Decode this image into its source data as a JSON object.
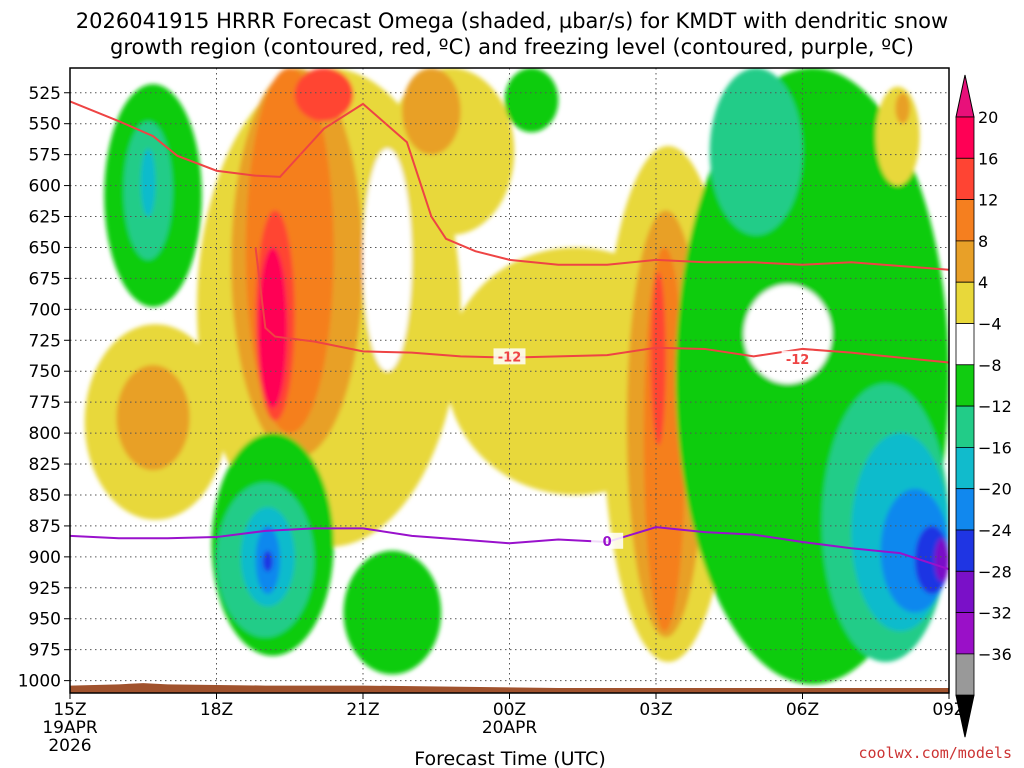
{
  "chart_data": {
    "type": "heatmap",
    "title_line1": "2026041915 HRRR Forecast Omega (shaded, µbar/s) for KMDT with dendritic snow",
    "title_line2": "growth region (contoured, red, ºC) and freezing level (contoured, purple, ºC)",
    "xlabel": "Forecast Time (UTC)",
    "credit": "coolwx.com/models",
    "x_range_hours": [
      0,
      18
    ],
    "x_ticks": [
      {
        "h": 0,
        "label": "15Z",
        "sub1": "19APR",
        "sub2": "2026"
      },
      {
        "h": 3,
        "label": "18Z",
        "sub1": "",
        "sub2": ""
      },
      {
        "h": 6,
        "label": "21Z",
        "sub1": "",
        "sub2": ""
      },
      {
        "h": 9,
        "label": "00Z",
        "sub1": "20APR",
        "sub2": ""
      },
      {
        "h": 12,
        "label": "03Z",
        "sub1": "",
        "sub2": ""
      },
      {
        "h": 15,
        "label": "06Z",
        "sub1": "",
        "sub2": ""
      },
      {
        "h": 18,
        "label": "09Z",
        "sub1": "",
        "sub2": ""
      }
    ],
    "y_range_hPa": [
      505,
      1010
    ],
    "y_ticks": [
      525,
      550,
      575,
      600,
      625,
      650,
      675,
      700,
      725,
      750,
      775,
      800,
      825,
      850,
      875,
      900,
      925,
      950,
      975,
      1000
    ],
    "colorbar": {
      "labels": [
        "20",
        "16",
        "12",
        "8",
        "4",
        "−4",
        "−8",
        "−12",
        "−16",
        "−20",
        "−24",
        "−28",
        "−32",
        "−36"
      ],
      "colors": [
        "#ff0055",
        "#ff4433",
        "#f57f1f",
        "#e8a028",
        "#e8d83a",
        "#ffffff",
        "#11cc11",
        "#22cc88",
        "#11bbcc",
        "#1188ee",
        "#1f35e3",
        "#7a10c8",
        "#9a10c8",
        "#999999"
      ],
      "top_color": "#e8107a",
      "bottom_color": "#000000"
    },
    "omega_cells": [
      {
        "name": "green-cell-upper-left",
        "color": "#11cc11",
        "h0": 0.7,
        "h1": 2.7,
        "p0": 518,
        "p1": 698
      },
      {
        "name": "teal-cell-upper-left",
        "color": "#22cc88",
        "h0": 1.1,
        "h1": 2.1,
        "p0": 548,
        "p1": 660
      },
      {
        "name": "cyan-cell-upper-left",
        "color": "#11bbcc",
        "h0": 1.45,
        "h1": 1.75,
        "p0": 570,
        "p1": 625
      },
      {
        "name": "yellow-lobe-lower-left",
        "color": "#e8d83a",
        "h0": 0.3,
        "h1": 3.2,
        "p0": 712,
        "p1": 870
      },
      {
        "name": "gold-lobe-lower-left",
        "color": "#e8a028",
        "h0": 0.95,
        "h1": 2.45,
        "p0": 745,
        "p1": 830
      },
      {
        "name": "yellow-main-ascent",
        "color": "#e8d83a",
        "h0": 2.6,
        "h1": 8.0,
        "p0": 505,
        "p1": 892
      },
      {
        "name": "gold-main-ascent",
        "color": "#e8a028",
        "h0": 3.3,
        "h1": 6.0,
        "p0": 505,
        "p1": 820
      },
      {
        "name": "orange-main-ascent",
        "color": "#f57f1f",
        "h0": 3.6,
        "h1": 5.4,
        "p0": 505,
        "p1": 800
      },
      {
        "name": "red-main-ascent",
        "color": "#ff4433",
        "h0": 3.8,
        "h1": 4.6,
        "p0": 620,
        "p1": 790
      },
      {
        "name": "magenta-core-lower",
        "color": "#ff0055",
        "h0": 3.85,
        "h1": 4.45,
        "p0": 650,
        "p1": 780
      },
      {
        "name": "red-core-upper",
        "color": "#ff4433",
        "h0": 4.6,
        "h1": 5.8,
        "p0": 505,
        "p1": 548
      },
      {
        "name": "yellow-upper-mid",
        "color": "#e8d83a",
        "h0": 6.5,
        "h1": 9.1,
        "p0": 505,
        "p1": 640
      },
      {
        "name": "gold-upper-mid",
        "color": "#e8a028",
        "h0": 6.8,
        "h1": 8.0,
        "p0": 505,
        "p1": 575
      },
      {
        "name": "green-upper-mid",
        "color": "#11cc11",
        "h0": 8.9,
        "h1": 10.0,
        "p0": 505,
        "p1": 557
      },
      {
        "name": "yellow-central-ridge",
        "color": "#e8d83a",
        "h0": 7.7,
        "h1": 13.0,
        "p0": 650,
        "p1": 850
      },
      {
        "name": "yellow-03z-column",
        "color": "#e8d83a",
        "h0": 10.9,
        "h1": 13.6,
        "p0": 568,
        "p1": 985
      },
      {
        "name": "gold-03z-column",
        "color": "#e8a028",
        "h0": 11.4,
        "h1": 13.0,
        "p0": 620,
        "p1": 965
      },
      {
        "name": "orange-03z-column",
        "color": "#f57f1f",
        "h0": 11.75,
        "h1": 12.6,
        "p0": 650,
        "p1": 960
      },
      {
        "name": "red-03z-core",
        "color": "#ff4433",
        "h0": 11.9,
        "h1": 12.2,
        "p0": 670,
        "p1": 810
      },
      {
        "name": "green-west-lower",
        "color": "#11cc11",
        "h0": 2.9,
        "h1": 5.4,
        "p0": 800,
        "p1": 980
      },
      {
        "name": "teal-west-lower",
        "color": "#22cc88",
        "h0": 3.0,
        "h1": 5.0,
        "p0": 840,
        "p1": 965
      },
      {
        "name": "cyan-west-lower",
        "color": "#11bbcc",
        "h0": 3.5,
        "h1": 4.6,
        "p0": 860,
        "p1": 940
      },
      {
        "name": "blue-west-lower",
        "color": "#1188ee",
        "h0": 3.8,
        "h1": 4.3,
        "p0": 875,
        "p1": 930
      },
      {
        "name": "purple-west-dot",
        "color": "#1f35e3",
        "h0": 3.95,
        "h1": 4.15,
        "p0": 895,
        "p1": 912
      },
      {
        "name": "green-center-lower",
        "color": "#11cc11",
        "h0": 5.6,
        "h1": 7.6,
        "p0": 895,
        "p1": 995
      },
      {
        "name": "green-east-main",
        "color": "#11cc11",
        "h0": 12.4,
        "h1": 18.0,
        "p0": 505,
        "p1": 1003
      },
      {
        "name": "teal-east-upper",
        "color": "#22cc88",
        "h0": 13.1,
        "h1": 15.0,
        "p0": 505,
        "p1": 640
      },
      {
        "name": "yellow-east-upper",
        "color": "#e8d83a",
        "h0": 16.5,
        "h1": 17.4,
        "p0": 520,
        "p1": 600
      },
      {
        "name": "gold-east-upper",
        "color": "#e8a028",
        "h0": 16.9,
        "h1": 17.2,
        "p0": 525,
        "p1": 550
      },
      {
        "name": "teal-east-lower",
        "color": "#22cc88",
        "h0": 15.4,
        "h1": 18.0,
        "p0": 760,
        "p1": 985
      },
      {
        "name": "cyan-east-lower",
        "color": "#11bbcc",
        "h0": 16.0,
        "h1": 18.0,
        "p0": 800,
        "p1": 960
      },
      {
        "name": "blue-east-lower",
        "color": "#1188ee",
        "h0": 16.6,
        "h1": 18.0,
        "p0": 845,
        "p1": 945
      },
      {
        "name": "navy-east-lower",
        "color": "#1f35e3",
        "h0": 17.3,
        "h1": 18.0,
        "p0": 875,
        "p1": 930
      },
      {
        "name": "purple-east-lower",
        "color": "#7a10c8",
        "h0": 17.7,
        "h1": 18.0,
        "p0": 885,
        "p1": 920
      }
    ],
    "white_holes": [
      {
        "name": "white-hole-21z",
        "h0": 6.0,
        "h1": 7.0,
        "p0": 570,
        "p1": 750
      },
      {
        "name": "white-hole-05z",
        "h0": 13.8,
        "h1": 15.6,
        "p0": 680,
        "p1": 760
      }
    ],
    "dgz_isotherm_label": "-12",
    "dgz_upper": {
      "name": "dgz-upper-isotherm",
      "h": [
        0,
        1,
        1.7,
        2.2,
        3.0,
        3.8,
        4.3,
        5.2,
        6.0,
        6.9,
        7.4,
        7.7,
        8.3,
        9.0,
        10.0,
        11.0,
        12.0,
        13.0,
        14.0,
        15.0,
        16.0,
        17.0,
        18.0
      ],
      "p": [
        532,
        548,
        560,
        576,
        588,
        592,
        593,
        554,
        534,
        565,
        625,
        643,
        653,
        660,
        664,
        664,
        660,
        662,
        662,
        664,
        662,
        665,
        668
      ]
    },
    "dgz_lower": {
      "name": "dgz-lower-isotherm",
      "h": [
        3.8,
        4.0,
        4.2,
        5.0,
        6.0,
        7.0,
        8.0,
        9.0,
        10.0,
        11.0,
        12.0,
        13.0,
        14.0,
        15.0,
        16.0,
        17.0,
        18.0
      ],
      "p": [
        650,
        715,
        722,
        726,
        734,
        735,
        738,
        739,
        738,
        737,
        731,
        732,
        738,
        732,
        735,
        739,
        743
      ],
      "labels": [
        {
          "h": 9.0,
          "p": 738
        },
        {
          "h": 14.9,
          "p": 740
        }
      ]
    },
    "freezing_level_label": "0",
    "freezing_level": {
      "name": "freezing-level-0c",
      "h": [
        0,
        1.0,
        2.0,
        3.0,
        4.0,
        5.0,
        6.0,
        7.0,
        8.0,
        9.0,
        10.0,
        11.0,
        12.0,
        13.0,
        14.0,
        15.0,
        16.0,
        17.0,
        18.0
      ],
      "p": [
        883,
        885,
        885,
        884,
        879,
        877,
        877,
        883,
        886,
        889,
        886,
        888,
        876,
        880,
        882,
        888,
        893,
        897,
        910
      ],
      "labels": [
        {
          "h": 11.0,
          "p": 887
        }
      ]
    },
    "terrain": {
      "name": "terrain-surface",
      "color": "#a0522d",
      "h": [
        0,
        1.0,
        1.5,
        2.0,
        4.0,
        6.0,
        8.0,
        10.0,
        12.0,
        14.0,
        16.0,
        18.0
      ],
      "p": [
        1004,
        1003,
        1002,
        1003,
        1004,
        1004,
        1005,
        1006,
        1006,
        1006,
        1006,
        1006
      ]
    }
  }
}
